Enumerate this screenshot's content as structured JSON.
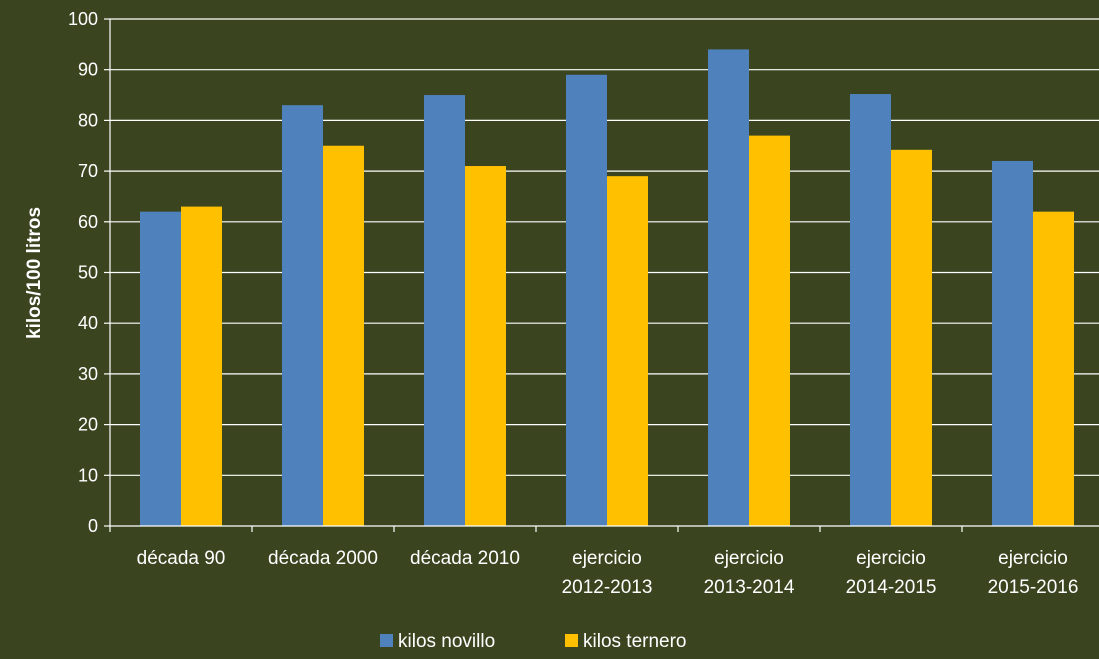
{
  "chart_data": {
    "type": "bar",
    "ylabel": "kilos/100 litros",
    "ylim": [
      0,
      100
    ],
    "yticks": [
      0,
      10,
      20,
      30,
      40,
      50,
      60,
      70,
      80,
      90,
      100
    ],
    "grid": true,
    "legend_position": "bottom",
    "categories": [
      [
        "década 90"
      ],
      [
        "década 2000"
      ],
      [
        "década 2010"
      ],
      [
        "ejercicio",
        "2012-2013"
      ],
      [
        "ejercicio",
        "2013-2014"
      ],
      [
        "ejercicio",
        "2014-2015"
      ],
      [
        "ejercicio",
        "2015-2016"
      ]
    ],
    "series": [
      {
        "name": "kilos novillo",
        "color": "#4f81bd",
        "values": [
          62,
          83,
          85,
          89,
          94,
          85.2,
          72
        ]
      },
      {
        "name": "kilos ternero",
        "color": "#ffc000",
        "values": [
          63,
          75,
          71,
          69,
          77,
          74.2,
          62
        ]
      }
    ],
    "colors": {
      "background": "#3a4520",
      "axis": "#ffffff",
      "grid": "#ffffff"
    }
  }
}
